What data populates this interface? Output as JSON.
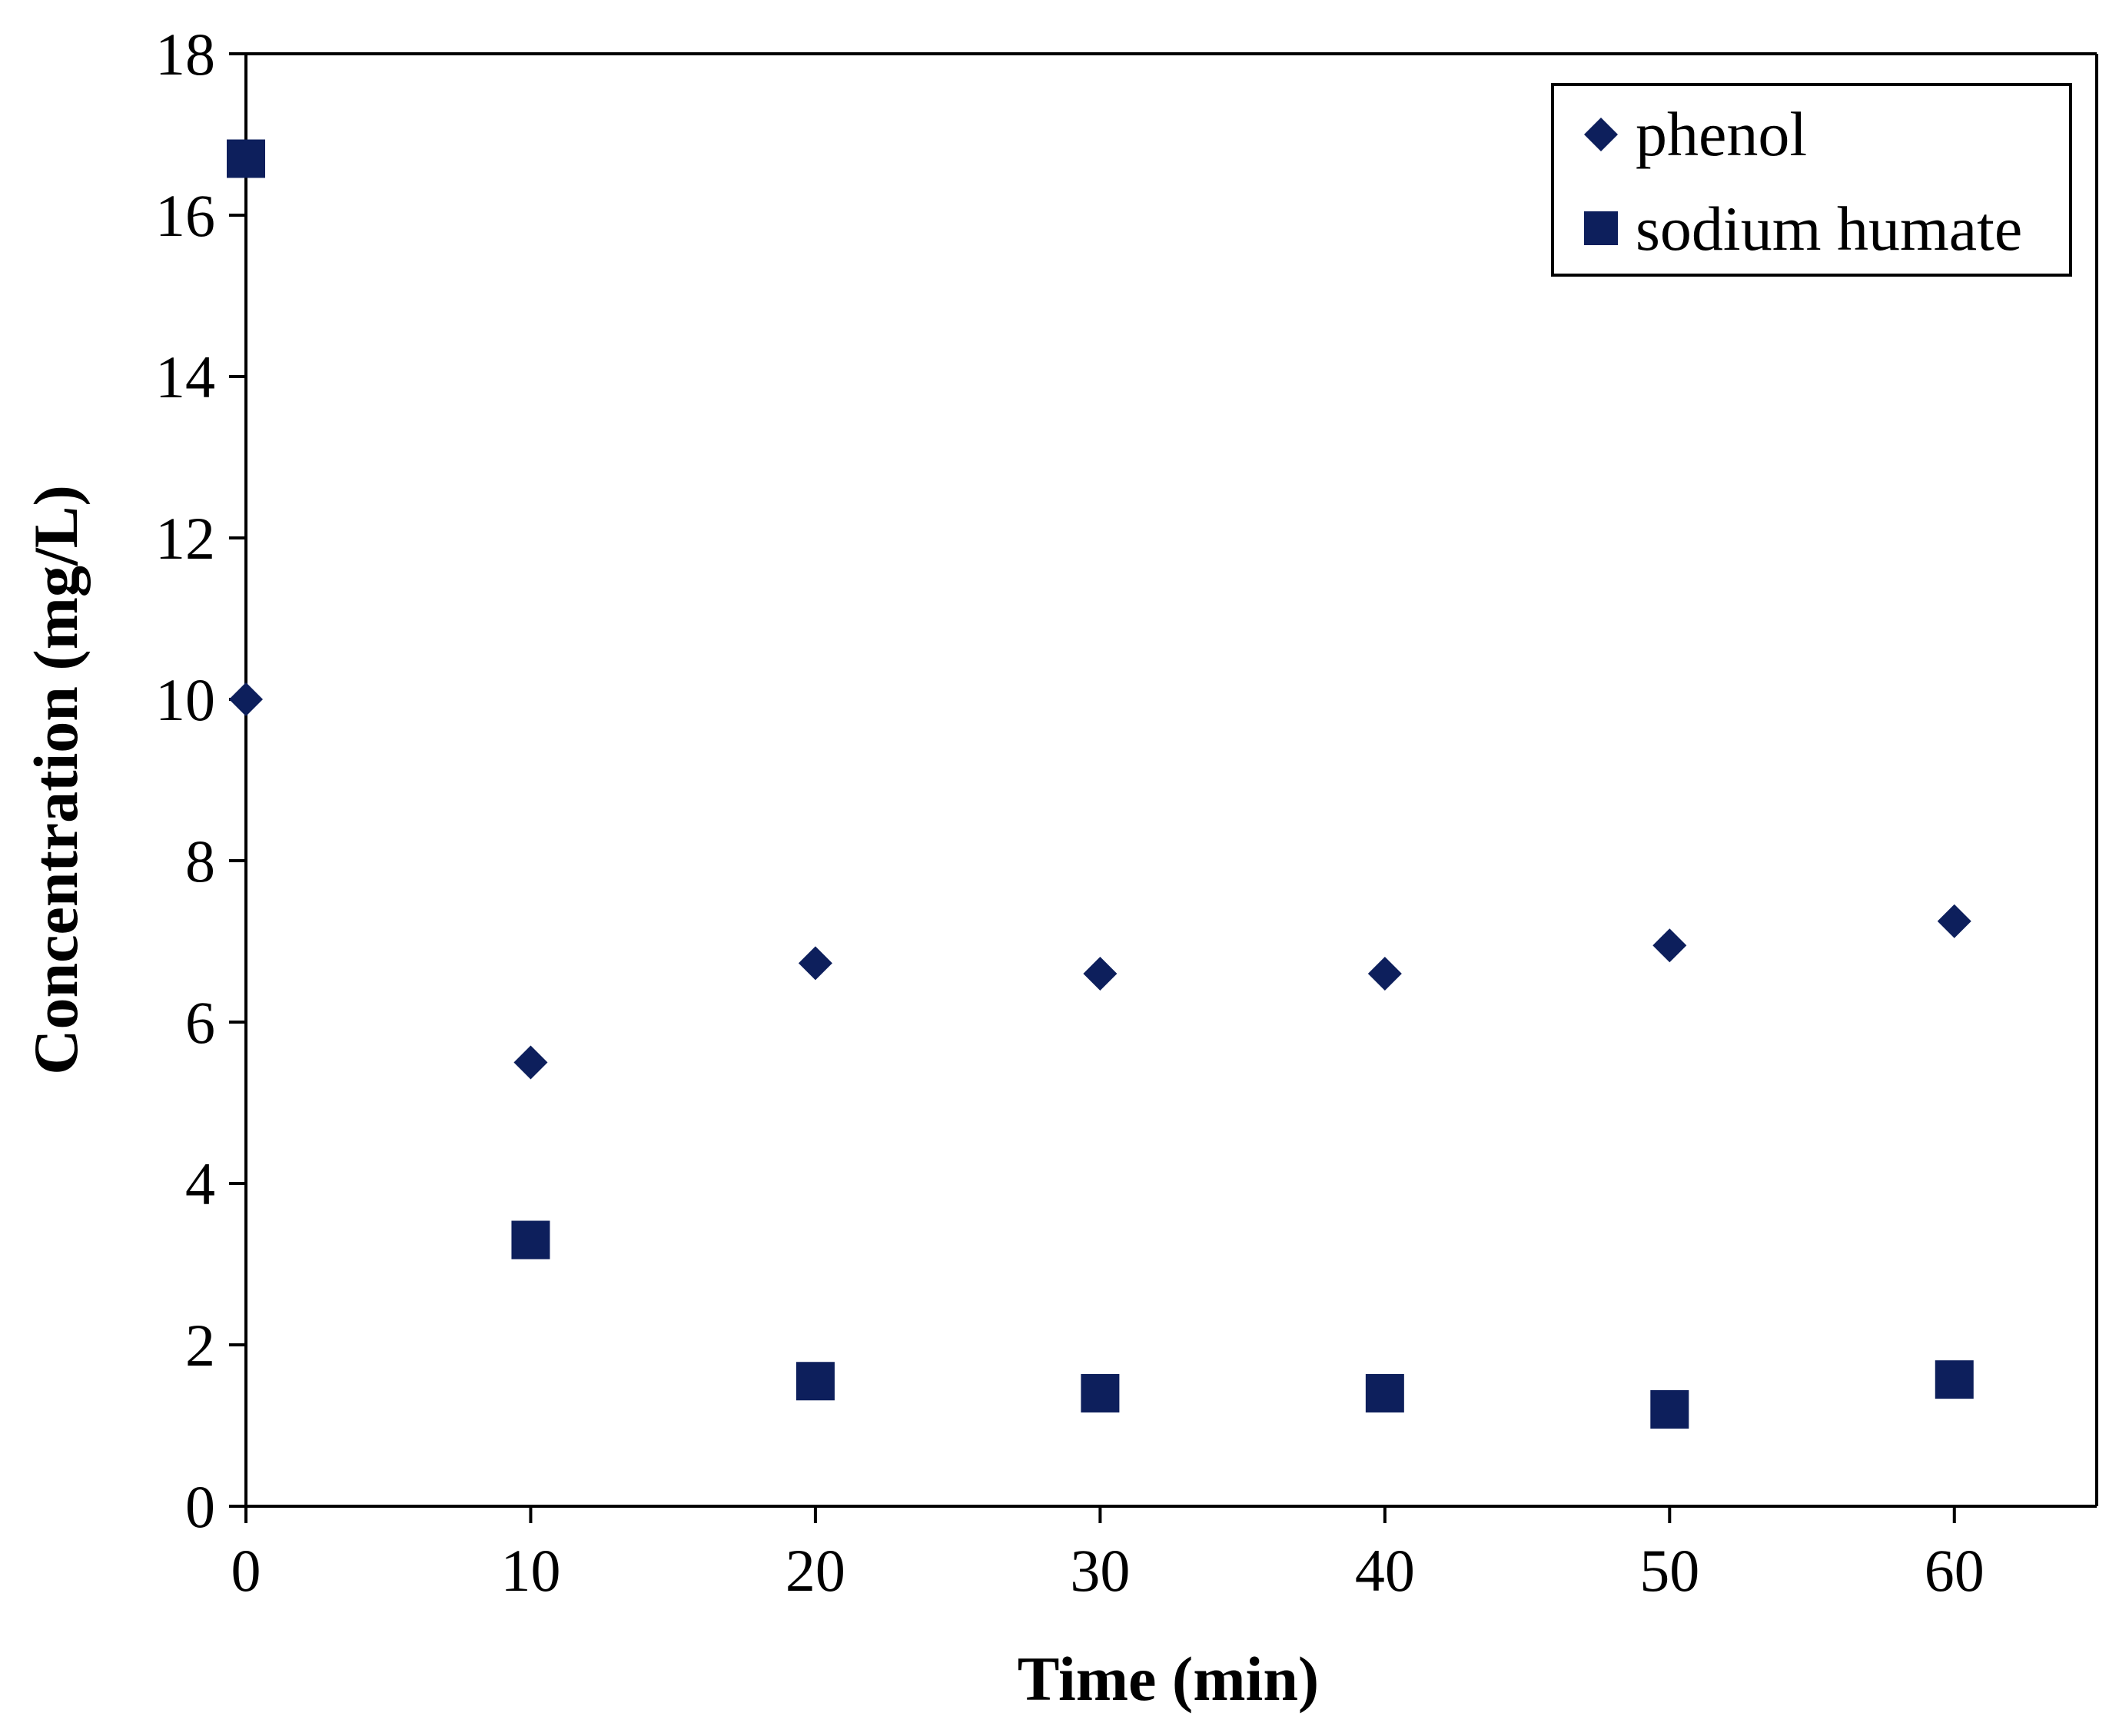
{
  "chart_data": {
    "type": "scatter",
    "title": "",
    "xlabel": "Time (min)",
    "ylabel": "Concentration (mg/L)",
    "xlim": [
      0,
      65
    ],
    "ylim": [
      0,
      18
    ],
    "xticks": [
      "0",
      "10",
      "20",
      "30",
      "40",
      "50",
      "60"
    ],
    "xtick_values": [
      0,
      10,
      20,
      30,
      40,
      50,
      60
    ],
    "yticks": [
      "0",
      "2",
      "4",
      "6",
      "8",
      "10",
      "12",
      "14",
      "16",
      "18"
    ],
    "ytick_values": [
      0,
      2,
      4,
      6,
      8,
      10,
      12,
      14,
      16,
      18
    ],
    "grid": false,
    "legend_position": "top-right",
    "series": [
      {
        "name": "phenol",
        "marker": "diamond",
        "color": "#0d1f5c",
        "x": [
          0,
          10,
          20,
          30,
          40,
          50,
          60
        ],
        "y": [
          10.0,
          5.5,
          6.73,
          6.6,
          6.6,
          6.95,
          7.25
        ]
      },
      {
        "name": "sodium humate",
        "marker": "square",
        "color": "#0d1f5c",
        "x": [
          0,
          10,
          20,
          30,
          40,
          50,
          60
        ],
        "y": [
          16.7,
          3.3,
          1.55,
          1.4,
          1.4,
          1.2,
          1.57
        ]
      }
    ]
  }
}
